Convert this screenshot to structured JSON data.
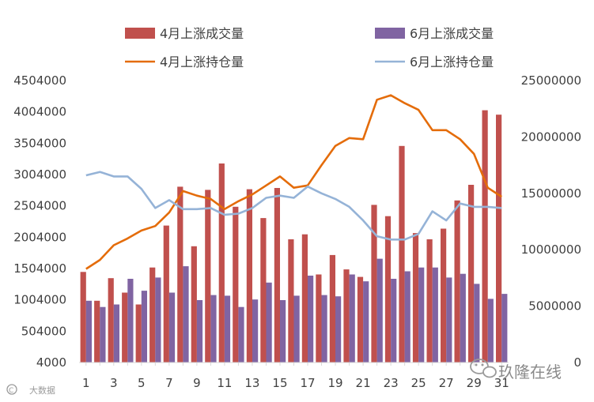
{
  "chart_data": {
    "type": "bar+line",
    "x": [
      1,
      2,
      3,
      4,
      5,
      6,
      7,
      8,
      9,
      10,
      11,
      12,
      13,
      14,
      15,
      16,
      17,
      18,
      19,
      20,
      21,
      22,
      23,
      24,
      25,
      26,
      27,
      28,
      29,
      30,
      31
    ],
    "x_tick_labels": [
      "1",
      "3",
      "5",
      "7",
      "9",
      "11",
      "13",
      "15",
      "17",
      "19",
      "21",
      "23",
      "25",
      "27",
      "29",
      "31"
    ],
    "y_left_ticks": [
      "4000",
      "504000",
      "1004000",
      "1504000",
      "2004000",
      "2504000",
      "3004000",
      "3504000",
      "4004000",
      "4504000"
    ],
    "y_left_range": [
      4000,
      4504000
    ],
    "y_right_ticks": [
      "0",
      "5000000",
      "10000000",
      "15000000",
      "20000000",
      "25000000"
    ],
    "y_right_range": [
      0,
      25000000
    ],
    "grid": false,
    "legend_position": "top",
    "series": [
      {
        "name": "4月上涨成交量",
        "kind": "bar",
        "axis": "left",
        "color": "#c0504d",
        "values": [
          1450000,
          990000,
          1350000,
          1120000,
          930000,
          1520000,
          2190000,
          2810000,
          1860000,
          2760000,
          3180000,
          2490000,
          2770000,
          2310000,
          2790000,
          1970000,
          2050000,
          1410000,
          1720000,
          1490000,
          1370000,
          2520000,
          2340000,
          3460000,
          2070000,
          1970000,
          2140000,
          2590000,
          2840000,
          4030000,
          3960000
        ]
      },
      {
        "name": "6月上涨成交量",
        "kind": "bar",
        "axis": "left",
        "color": "#8064a2",
        "values": [
          990000,
          890000,
          930000,
          1340000,
          1150000,
          1360000,
          1120000,
          1540000,
          1000000,
          1080000,
          1070000,
          890000,
          1010000,
          1280000,
          1000000,
          1070000,
          1390000,
          1080000,
          1060000,
          1410000,
          1300000,
          1660000,
          1340000,
          1460000,
          1520000,
          1520000,
          1360000,
          1420000,
          1260000,
          1020000,
          1100000
        ]
      },
      {
        "name": "4月上涨持仓量",
        "kind": "line",
        "axis": "right",
        "color": "#e46c0a",
        "values": [
          8300000,
          9100000,
          10400000,
          11000000,
          11700000,
          12100000,
          13300000,
          15200000,
          14800000,
          14500000,
          13600000,
          14300000,
          14900000,
          15700000,
          16500000,
          15500000,
          15700000,
          17500000,
          19200000,
          19900000,
          19800000,
          23300000,
          23700000,
          23000000,
          22400000,
          20600000,
          20600000,
          19800000,
          18500000,
          15500000,
          14700000
        ]
      },
      {
        "name": "6月上涨持仓量",
        "kind": "line",
        "axis": "right",
        "color": "#95b3d7",
        "values": [
          16600000,
          16900000,
          16500000,
          16500000,
          15400000,
          13700000,
          14400000,
          13600000,
          13600000,
          13700000,
          13100000,
          13200000,
          13700000,
          14600000,
          14800000,
          14600000,
          15600000,
          15000000,
          14500000,
          13800000,
          12600000,
          11200000,
          10900000,
          10900000,
          11400000,
          13400000,
          12600000,
          14100000,
          13800000,
          13800000,
          13700000
        ]
      }
    ]
  },
  "watermark": {
    "brand": "玖隆在线",
    "corner": "大数据"
  }
}
